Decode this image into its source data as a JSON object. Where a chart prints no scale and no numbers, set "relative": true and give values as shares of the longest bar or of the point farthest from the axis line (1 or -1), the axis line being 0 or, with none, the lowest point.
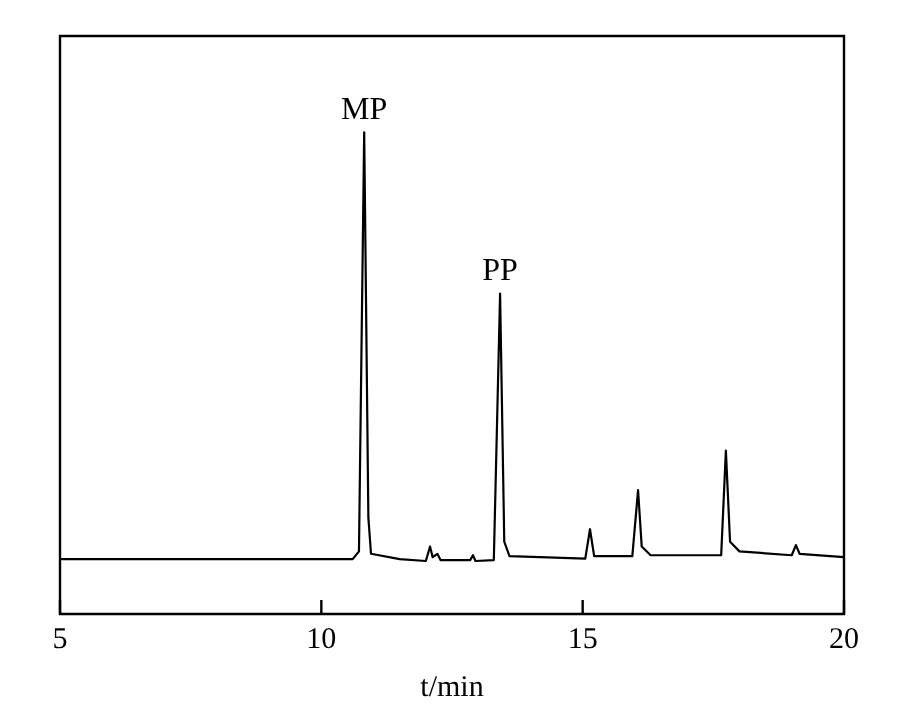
{
  "chart_data": {
    "type": "line",
    "relative": true,
    "xlabel": "t/min",
    "xlim": [
      5,
      20
    ],
    "xticks": [
      5,
      10,
      15,
      20
    ],
    "color": "#000000",
    "marker": "none",
    "legend": false,
    "grid": false,
    "x": [
      5,
      10.6,
      10.72,
      10.82,
      10.9,
      10.95,
      11.5,
      12.0,
      12.08,
      12.13,
      12.22,
      12.28,
      12.85,
      12.9,
      12.95,
      13.3,
      13.42,
      13.5,
      13.6,
      15.05,
      15.14,
      15.22,
      15.95,
      16.06,
      16.13,
      16.3,
      17.65,
      17.74,
      17.82,
      18.0,
      19.0,
      19.08,
      19.15,
      20
    ],
    "values": [
      0.114,
      0.114,
      0.13,
      1.0,
      0.2,
      0.125,
      0.114,
      0.11,
      0.14,
      0.118,
      0.125,
      0.112,
      0.112,
      0.122,
      0.11,
      0.112,
      0.665,
      0.15,
      0.12,
      0.115,
      0.176,
      0.12,
      0.12,
      0.257,
      0.14,
      0.122,
      0.122,
      0.339,
      0.15,
      0.13,
      0.122,
      0.143,
      0.125,
      0.118
    ],
    "annotations": [
      {
        "text": "MP",
        "x": 10.82,
        "y": 1.0
      },
      {
        "text": "PP",
        "x": 13.42,
        "y": 0.665
      }
    ]
  }
}
